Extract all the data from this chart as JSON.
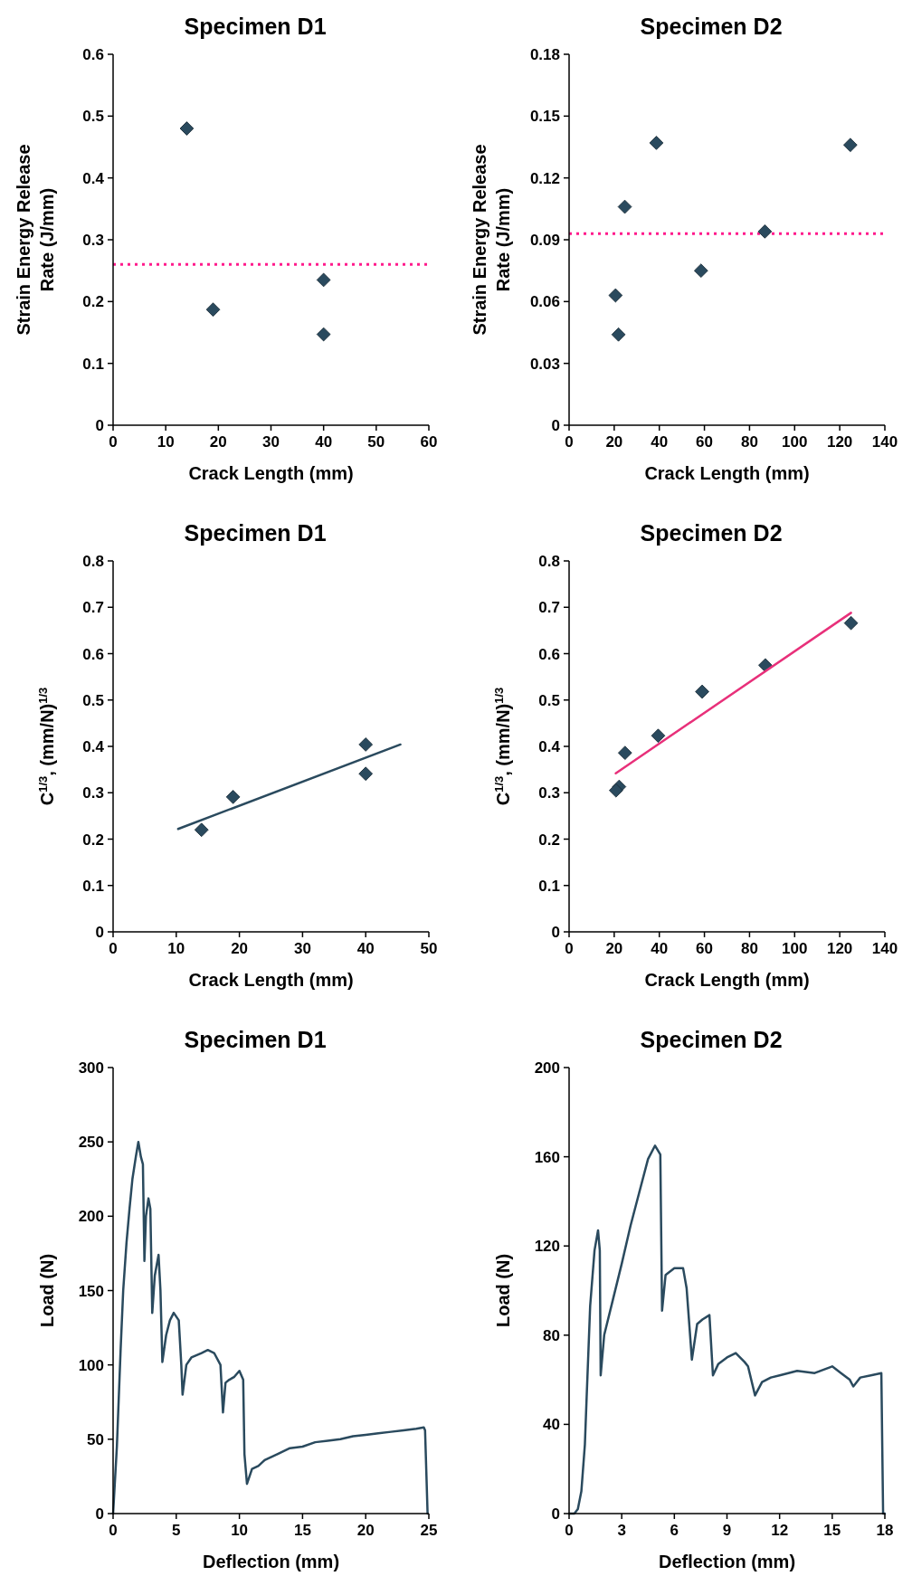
{
  "chart_data": [
    {
      "type": "line",
      "title": "Specimen D1",
      "xlabel": "Deflection (mm)",
      "ylabel": "Load (N)",
      "xlim": [
        0,
        25
      ],
      "xticks": [
        0,
        5,
        10,
        15,
        20,
        25
      ],
      "ylim": [
        0,
        300
      ],
      "yticks": [
        0,
        50,
        100,
        150,
        200,
        250,
        300
      ],
      "series": [
        {
          "color": "#2a4a5e",
          "x": [
            0,
            0.3,
            0.6,
            0.8,
            1.06,
            1.3,
            1.53,
            1.8,
            2.0,
            2.2,
            2.36,
            2.48,
            2.6,
            2.8,
            2.95,
            3.1,
            3.3,
            3.6,
            3.75,
            3.9,
            4.2,
            4.5,
            4.8,
            5.2,
            5.4,
            5.5,
            5.8,
            6.2,
            7,
            7.5,
            8,
            8.5,
            8.7,
            8.9,
            9.2,
            9.6,
            10,
            10.3,
            10.4,
            10.6,
            11,
            11.5,
            12,
            12.5,
            13,
            14,
            15,
            16,
            17,
            18,
            19,
            20,
            21,
            22,
            23,
            24,
            24.6,
            24.7,
            24.9
          ],
          "values": [
            0,
            45,
            111,
            150,
            182,
            205,
            225,
            240,
            250,
            240,
            235,
            170,
            200,
            212,
            205,
            135,
            160,
            174,
            150,
            102,
            120,
            130,
            135,
            130,
            100,
            80,
            100,
            105,
            108,
            110,
            108,
            100,
            68,
            88,
            90,
            92,
            96,
            90,
            40,
            20,
            30,
            32,
            36,
            38,
            40,
            44,
            45,
            48,
            49,
            50,
            52,
            53,
            54,
            55,
            56,
            57,
            58,
            56,
            0
          ]
        }
      ]
    },
    {
      "type": "scatter",
      "title": "Specimen D1",
      "xlabel": "Crack Length (mm)",
      "ylabel": "C$^{1/3}$, (mm/N)$^{1/3}$",
      "xlim": [
        0,
        50
      ],
      "xticks": [
        0,
        10,
        20,
        30,
        40,
        50
      ],
      "ylim": [
        0,
        0.8
      ],
      "yticks": [
        0,
        0.1,
        0.2,
        0.3,
        0.4,
        0.5,
        0.6,
        0.7,
        0.8
      ],
      "series": [
        {
          "marker": "diamond",
          "color": "#2a4a5e",
          "x": [
            40,
            40,
            19,
            14
          ],
          "values": [
            0.404,
            0.341,
            0.291,
            0.22
          ]
        },
        {
          "type": "line",
          "color": "#2a4a5e",
          "x": [
            10.3,
            45.5
          ],
          "values": [
            0.222,
            0.404
          ]
        }
      ]
    },
    {
      "type": "scatter",
      "title": "Specimen D1",
      "xlabel": "Crack Length (mm)",
      "ylabel": "Strain Energy Release\nRate (J/mm)",
      "xlim": [
        0,
        60
      ],
      "xticks": [
        0,
        10,
        20,
        30,
        40,
        50,
        60
      ],
      "ylim": [
        0,
        0.6
      ],
      "yticks": [
        0,
        0.1,
        0.2,
        0.3,
        0.4,
        0.5,
        0.6
      ],
      "series": [
        {
          "marker": "diamond",
          "color": "#2a4a5e",
          "x": [
            14,
            19,
            40,
            40
          ],
          "values": [
            0.48,
            0.187,
            0.235,
            0.147
          ]
        }
      ],
      "ref_lines": [
        {
          "axis": "y",
          "value": 0.26,
          "color": "#ff1a8c",
          "line_style": "dotted"
        }
      ]
    },
    {
      "type": "line",
      "title": "Specimen D2",
      "xlabel": "Deflection (mm)",
      "ylabel": "Load (N)",
      "xlim": [
        0,
        18
      ],
      "xticks": [
        0,
        3,
        6,
        9,
        12,
        15,
        18
      ],
      "ylim": [
        0,
        200
      ],
      "yticks": [
        0,
        40,
        80,
        120,
        160,
        200
      ],
      "series": [
        {
          "color": "#2a4a5e",
          "x": [
            0,
            0.3,
            0.5,
            0.7,
            0.9,
            1.0,
            1.2,
            1.45,
            1.65,
            1.75,
            1.8,
            2.0,
            2.5,
            3,
            3.5,
            4,
            4.5,
            4.9,
            5.2,
            5.3,
            5.5,
            6,
            6.5,
            6.7,
            7,
            7.3,
            7.6,
            8,
            8.2,
            8.5,
            9,
            9.5,
            10,
            10.2,
            10.6,
            11,
            11.5,
            12,
            13,
            14,
            15,
            15.5,
            16,
            16.2,
            16.6,
            17.2,
            17.8,
            17.9,
            18
          ],
          "values": [
            0,
            0,
            2,
            10,
            31,
            52,
            93,
            118,
            127,
            118,
            62,
            80,
            96,
            112,
            129,
            144,
            159,
            165,
            161,
            91,
            107,
            110,
            110,
            101,
            69,
            85,
            87,
            89,
            62,
            67,
            70,
            72,
            68,
            66,
            53,
            59,
            61,
            62,
            64,
            63,
            66,
            63,
            60,
            57,
            61,
            62,
            63,
            0,
            0
          ]
        }
      ]
    },
    {
      "type": "scatter",
      "title": "Specimen D2",
      "xlabel": "Crack Length (mm)",
      "ylabel": "C$^{1/3}$, (mm/N)$^{1/3}$",
      "xlim": [
        0,
        140
      ],
      "xticks": [
        0,
        20,
        40,
        60,
        80,
        100,
        120,
        140
      ],
      "ylim": [
        0,
        0.8
      ],
      "yticks": [
        0,
        0.1,
        0.2,
        0.3,
        0.4,
        0.5,
        0.6,
        0.7,
        0.8
      ],
      "series": [
        {
          "marker": "diamond",
          "color": "#2a4a5e",
          "x": [
            125,
            87,
            59,
            39.5,
            24.8,
            22.2,
            20.8
          ],
          "values": [
            0.666,
            0.575,
            0.518,
            0.423,
            0.386,
            0.313,
            0.305
          ]
        },
        {
          "type": "line",
          "color": "#e8307a",
          "x": [
            20.7,
            125
          ],
          "values": [
            0.342,
            0.688
          ]
        }
      ]
    },
    {
      "type": "scatter",
      "title": "Specimen D2",
      "xlabel": "Crack Length (mm)",
      "ylabel": "Strain Energy Release\nRate (J/mm)",
      "xlim": [
        0,
        140
      ],
      "xticks": [
        0,
        20,
        40,
        60,
        80,
        100,
        120,
        140
      ],
      "ylim": [
        0,
        0.18
      ],
      "yticks": [
        0,
        0.03,
        0.06,
        0.09,
        0.12,
        0.15,
        0.18
      ],
      "series": [
        {
          "marker": "diamond",
          "color": "#2a4a5e",
          "x": [
            124.7,
            86.8,
            58.5,
            38.7,
            24.7,
            20.6,
            21.9
          ],
          "values": [
            0.136,
            0.094,
            0.075,
            0.137,
            0.106,
            0.063,
            0.044
          ]
        }
      ],
      "ref_lines": [
        {
          "axis": "y",
          "value": 0.093,
          "color": "#ff1a8c",
          "line_style": "dotted"
        }
      ]
    }
  ]
}
